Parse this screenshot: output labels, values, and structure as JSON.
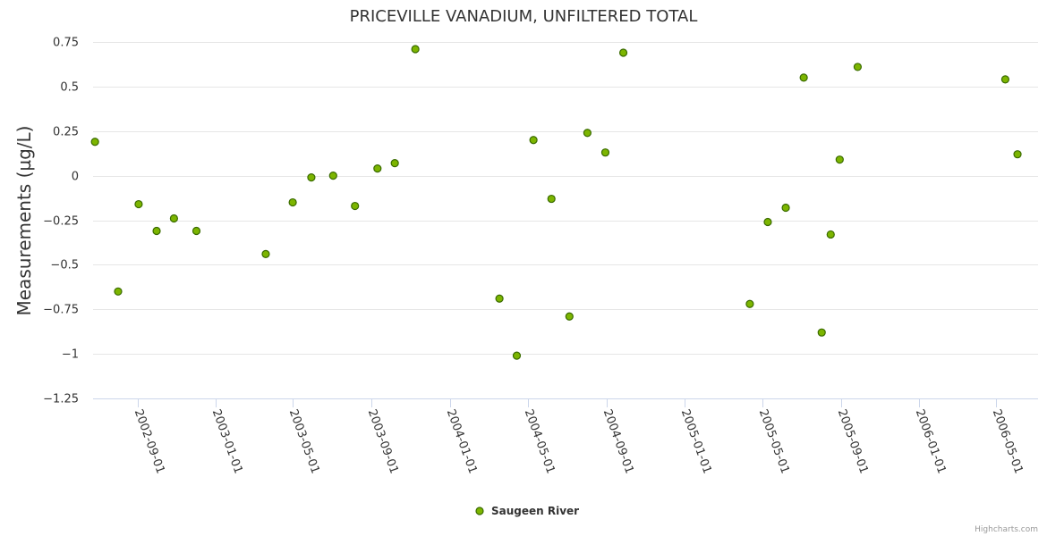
{
  "chart_data": {
    "type": "scatter",
    "title": "PRICEVILLE VANADIUM, UNFILTERED TOTAL",
    "xlabel": "",
    "ylabel": "Measurements (µg/L)",
    "ylim": [
      -1.25,
      0.75
    ],
    "y_ticks": [
      0.75,
      0.5,
      0.25,
      0,
      -0.25,
      -0.5,
      -0.75,
      -1,
      -1.25
    ],
    "y_tick_labels": [
      "0.75",
      "0.5",
      "0.25",
      "0",
      "−0.25",
      "−0.5",
      "−0.75",
      "−1",
      "−1.25"
    ],
    "xlim": [
      "2002-06-24",
      "2006-07-05"
    ],
    "x_ticks": [
      "2002-09-01",
      "2003-01-01",
      "2003-05-01",
      "2003-09-01",
      "2004-01-01",
      "2004-05-01",
      "2004-09-01",
      "2005-01-01",
      "2005-05-01",
      "2005-09-01",
      "2006-01-01",
      "2006-05-01"
    ],
    "grid": true,
    "legend_position": "bottom-center",
    "series": [
      {
        "name": "Saugeen River",
        "color": "#7cb500",
        "marker_stroke": "#3a6b00",
        "points": [
          {
            "x": "2002-06-27",
            "y": 0.19
          },
          {
            "x": "2002-08-02",
            "y": -0.65
          },
          {
            "x": "2002-09-03",
            "y": -0.16
          },
          {
            "x": "2002-10-01",
            "y": -0.31
          },
          {
            "x": "2002-10-28",
            "y": -0.24
          },
          {
            "x": "2002-12-02",
            "y": -0.31
          },
          {
            "x": "2003-03-20",
            "y": -0.44
          },
          {
            "x": "2003-05-01",
            "y": -0.15
          },
          {
            "x": "2003-05-30",
            "y": -0.01
          },
          {
            "x": "2003-07-03",
            "y": 0.0
          },
          {
            "x": "2003-08-06",
            "y": -0.17
          },
          {
            "x": "2003-09-10",
            "y": 0.04
          },
          {
            "x": "2003-10-07",
            "y": 0.07
          },
          {
            "x": "2003-11-08",
            "y": 0.71
          },
          {
            "x": "2004-03-18",
            "y": -0.69
          },
          {
            "x": "2004-04-14",
            "y": -1.01
          },
          {
            "x": "2004-05-10",
            "y": 0.2
          },
          {
            "x": "2004-06-07",
            "y": -0.13
          },
          {
            "x": "2004-07-05",
            "y": -0.79
          },
          {
            "x": "2004-08-02",
            "y": 0.24
          },
          {
            "x": "2004-08-30",
            "y": 0.13
          },
          {
            "x": "2004-09-27",
            "y": 0.69
          },
          {
            "x": "2005-04-12",
            "y": -0.72
          },
          {
            "x": "2005-05-10",
            "y": -0.26
          },
          {
            "x": "2005-06-07",
            "y": -0.18
          },
          {
            "x": "2005-07-05",
            "y": 0.55
          },
          {
            "x": "2005-08-02",
            "y": -0.88
          },
          {
            "x": "2005-08-16",
            "y": -0.33
          },
          {
            "x": "2005-08-30",
            "y": 0.09
          },
          {
            "x": "2005-09-27",
            "y": 0.61
          },
          {
            "x": "2006-05-15",
            "y": 0.54
          },
          {
            "x": "2006-06-03",
            "y": 0.12
          }
        ]
      }
    ]
  },
  "credits": "Highcharts.com"
}
